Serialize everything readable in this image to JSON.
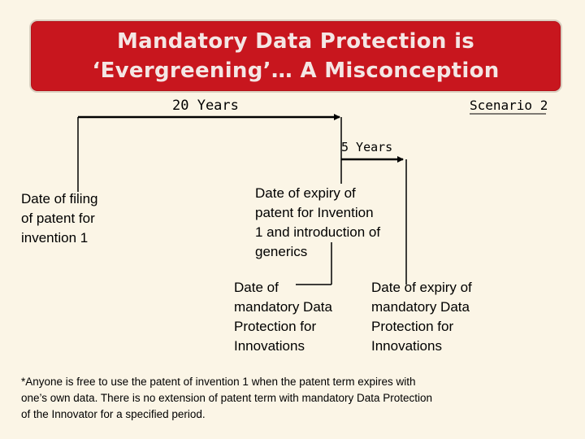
{
  "title": {
    "line1": "Mandatory Data Protection is",
    "line2": "‘Evergreening’… A Misconception"
  },
  "timeline": {
    "span_20_label": "20 Years",
    "scenario_label": "Scenario 2",
    "span_5_label": "5 Years"
  },
  "events": {
    "filing": [
      "Date of filing",
      "of patent for",
      "invention 1"
    ],
    "patent_expiry": [
      "Date of expiry of",
      "patent for Invention",
      "1 and introduction of",
      "generics"
    ],
    "dp_start": [
      "Date of",
      "mandatory Data",
      "Protection for",
      "Innovations"
    ],
    "dp_expiry": [
      "Date of expiry of",
      "mandatory Data",
      "Protection for",
      "Innovations"
    ]
  },
  "footnote": [
    "*Anyone is free to use the patent of invention 1 when the patent term expires with",
    "one’s own data. There is no extension of patent term with mandatory Data Protection",
    "of the Innovator for a specified period."
  ]
}
